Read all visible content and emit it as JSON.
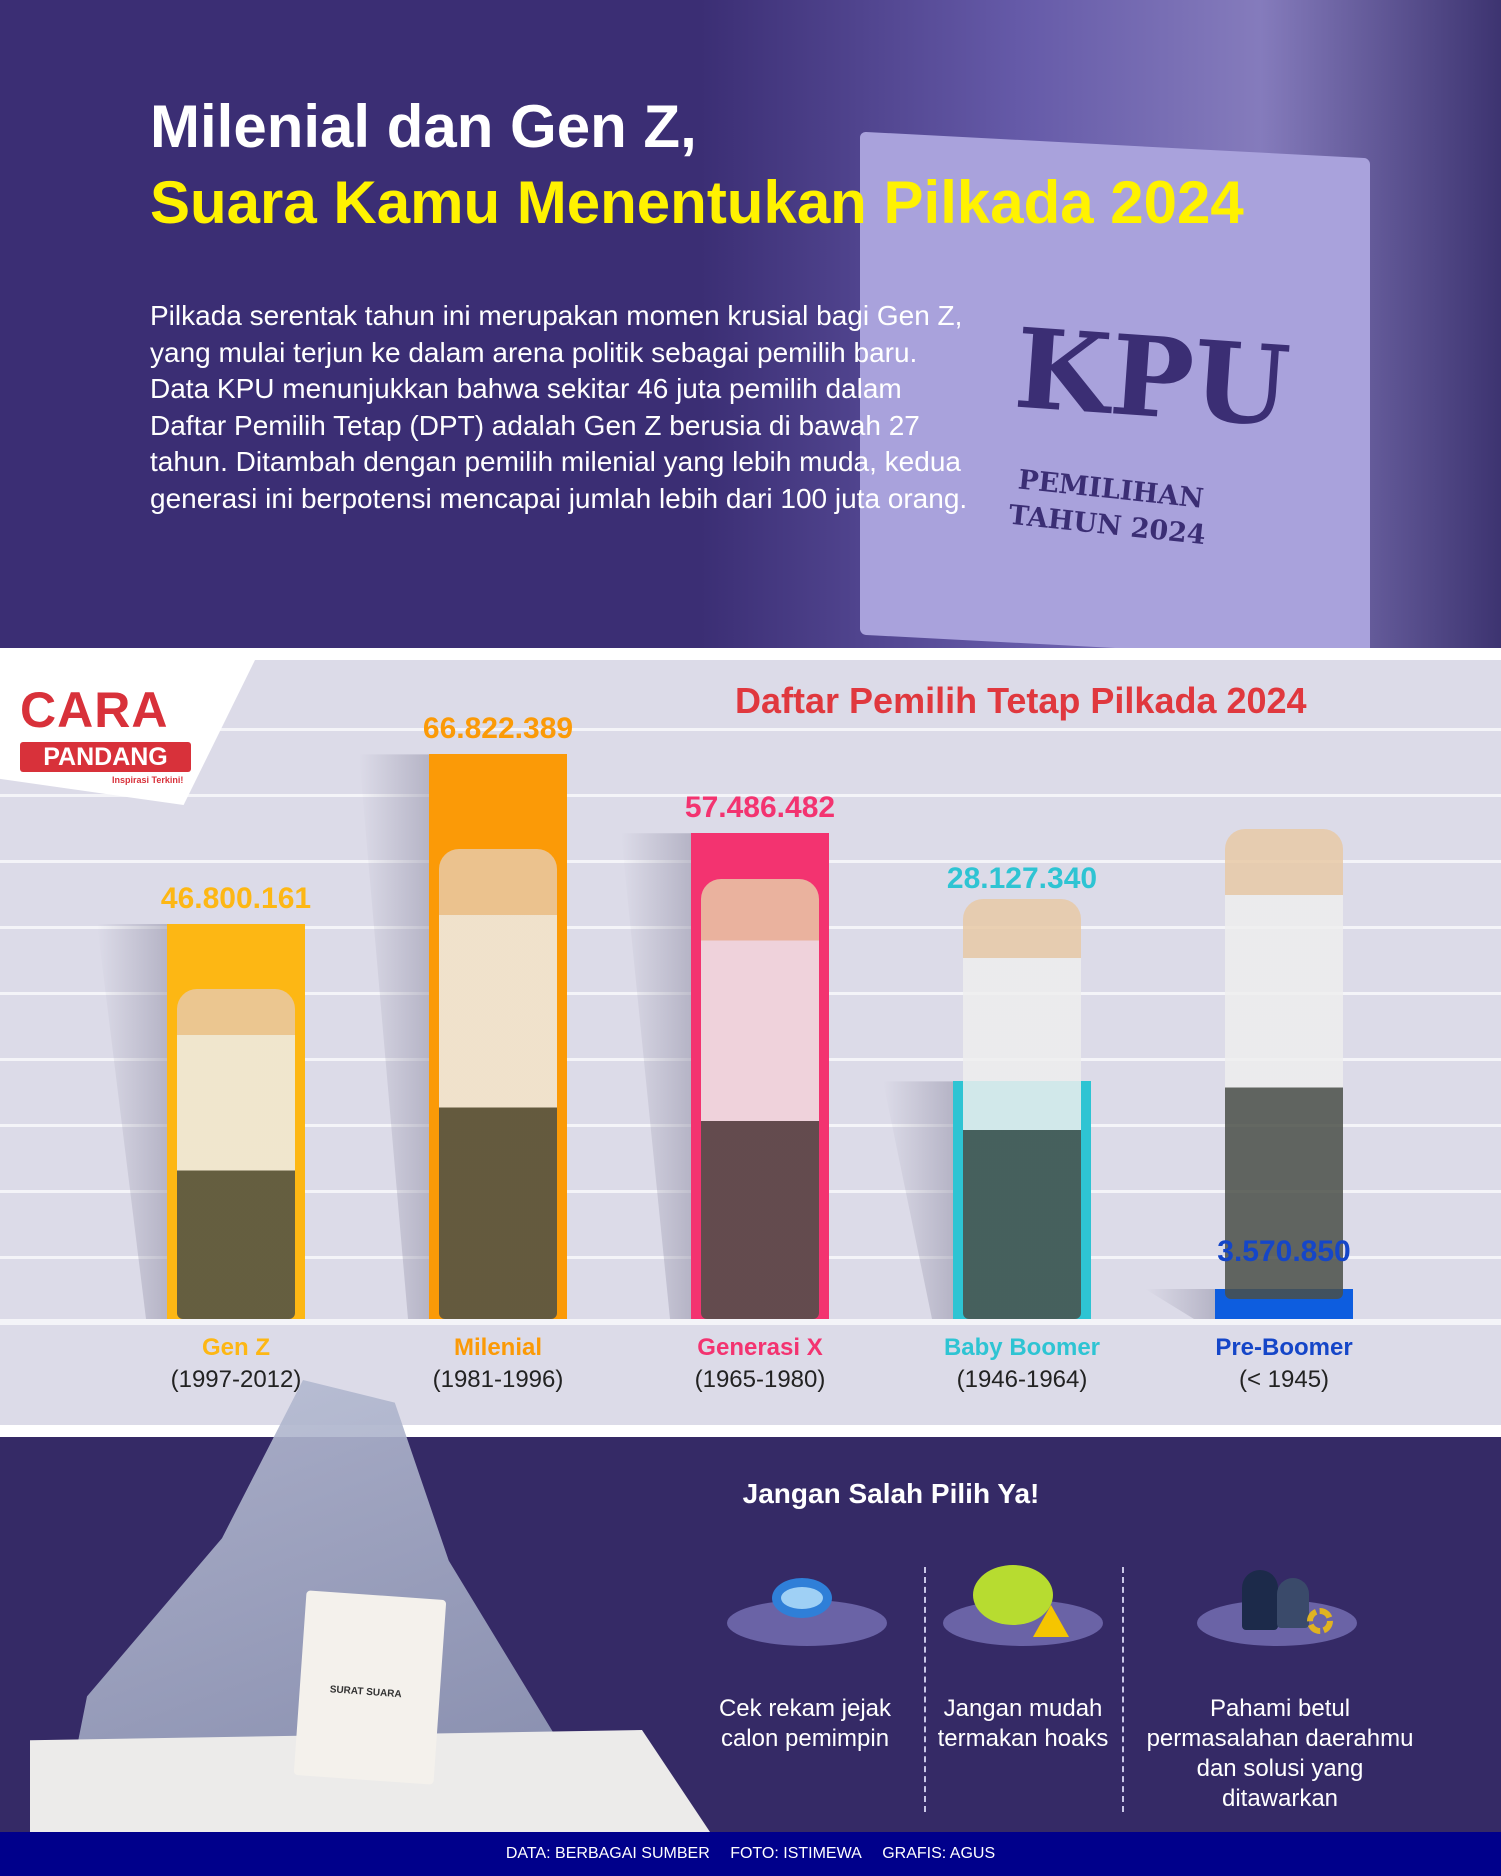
{
  "header": {
    "title_line1": "Milenial dan Gen Z,",
    "title_line2": "Suara Kamu Menentukan Pilkada 2024",
    "intro": "Pilkada serentak tahun ini merupakan momen krusial bagi Gen Z, yang mulai terjun ke dalam arena politik sebagai pemilih baru. Data KPU menunjukkan bahwa sekitar 46 juta pemilih dalam Daftar Pemilih Tetap (DPT) adalah Gen Z berusia di bawah 27 tahun. Ditambah dengan pemilih milenial yang lebih muda, kedua generasi ini berpotensi mencapai jumlah lebih dari 100 juta orang.",
    "photo_box_text": "KPU",
    "photo_box_sub1": "PEMILIHAN",
    "photo_box_sub2": "TAHUN 2024"
  },
  "logo": {
    "line1": "CARA",
    "line2": "PANDANG",
    "tagline": "Inspirasi Terkini!"
  },
  "chart_data": {
    "type": "bar",
    "title": "Daftar Pemilih Tetap Pilkada 2024",
    "categories": [
      "Gen Z",
      "Milenial",
      "Generasi X",
      "Baby Boomer",
      "Pre-Boomer"
    ],
    "years": [
      "(1997-2012)",
      "(1981-1996)",
      "(1965-1980)",
      "(1946-1964)",
      "(< 1945)"
    ],
    "values": [
      46800161,
      66822389,
      57486482,
      28127340,
      3570850
    ],
    "labels": [
      "46.800.161",
      "66.822.389",
      "57.486.482",
      "28.127.340",
      "3.570.850"
    ],
    "colors": [
      "#fdb714",
      "#fb9a07",
      "#f33370",
      "#2ec4d3",
      "#0d5ddf"
    ],
    "label_colors": [
      "#fdb714",
      "#fb9a07",
      "#f33370",
      "#2ec4d3",
      "#1546c8"
    ],
    "grid": true
  },
  "tips": {
    "heading": "Jangan Salah Pilih Ya!",
    "items": [
      {
        "icon": "magnifier-icon",
        "text": "Cek rekam jejak calon pemimpin"
      },
      {
        "icon": "warning-globe-icon",
        "text": "Jangan mudah termakan hoaks"
      },
      {
        "icon": "people-gear-icon",
        "text": "Pahami betul permasalahan daerahmu dan solusi yang ditawarkan"
      }
    ]
  },
  "ballot": {
    "label": "SURAT SUARA"
  },
  "footer": {
    "data": "DATA: BERBAGAI SUMBER",
    "foto": "FOTO:  ISTIMEWA",
    "grafis": "GRAFIS: AGUS"
  }
}
